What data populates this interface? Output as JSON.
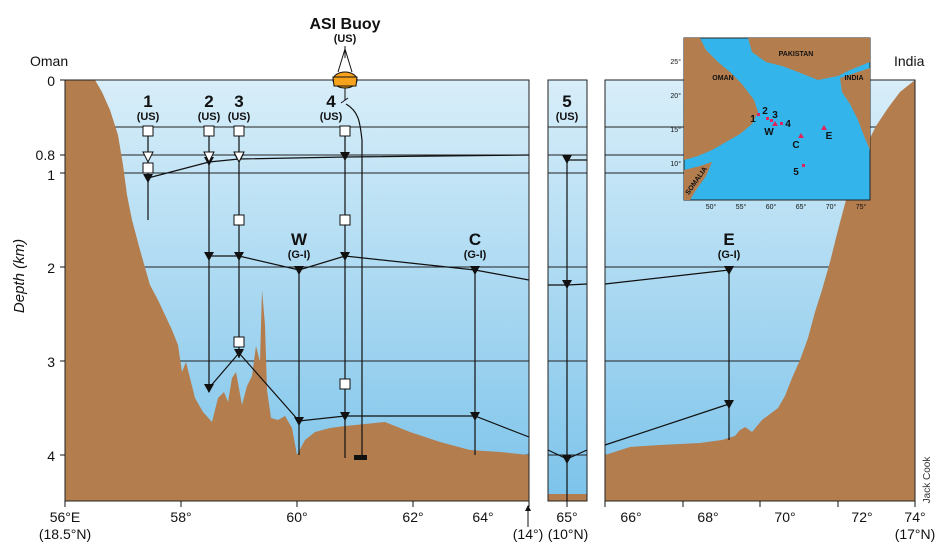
{
  "buoy": {
    "name": "ASI Buoy",
    "owner": "(US)"
  },
  "edges": {
    "left": "Oman",
    "right": "India"
  },
  "y_axis": {
    "label": "Depth (km)",
    "ticks": [
      {
        "label": "0",
        "value": 0
      },
      {
        "label": "0.8",
        "value": 0.8
      },
      {
        "label": "1",
        "value": 1
      },
      {
        "label": "2",
        "value": 2
      },
      {
        "label": "3",
        "value": 3
      },
      {
        "label": "4",
        "value": 4
      }
    ]
  },
  "x_axis": {
    "panel_a_ticks": [
      "56°E",
      "58°",
      "60°",
      "62°",
      "64°"
    ],
    "panel_a_sub": "(18.5°N)",
    "panel_a_break": "(14°)",
    "panel_b_ticks": [
      "65°"
    ],
    "panel_b_sub": "(10°N)",
    "panel_c_ticks": [
      "66°",
      "68°",
      "70°",
      "72°",
      "74°"
    ],
    "panel_c_sub": "(17°N)"
  },
  "moorings": [
    {
      "id": "1",
      "owner": "(US)"
    },
    {
      "id": "2",
      "owner": "(US)"
    },
    {
      "id": "3",
      "owner": "(US)"
    },
    {
      "id": "4",
      "owner": "(US)"
    },
    {
      "id": "5",
      "owner": "(US)"
    },
    {
      "id": "W",
      "owner": "(G-I)"
    },
    {
      "id": "C",
      "owner": "(G-I)"
    },
    {
      "id": "E",
      "owner": "(G-I)"
    }
  ],
  "inset_map": {
    "labels": [
      "PAKISTAN",
      "INDIA",
      "OMAN",
      "SOMALIA"
    ],
    "lat_ticks": [
      "25°",
      "20°",
      "15°",
      "10°"
    ],
    "lon_ticks": [
      "50°",
      "55°",
      "60°",
      "65°",
      "70°",
      "75°"
    ],
    "sites": [
      "1",
      "2",
      "3",
      "4",
      "W",
      "C",
      "E",
      "5"
    ]
  },
  "credit": "Jack Cook",
  "colors": {
    "land": "#b37d4e",
    "water_top": "#d8eef9",
    "water_bottom": "#7cc3ea",
    "map_sea": "#33b5ec"
  }
}
